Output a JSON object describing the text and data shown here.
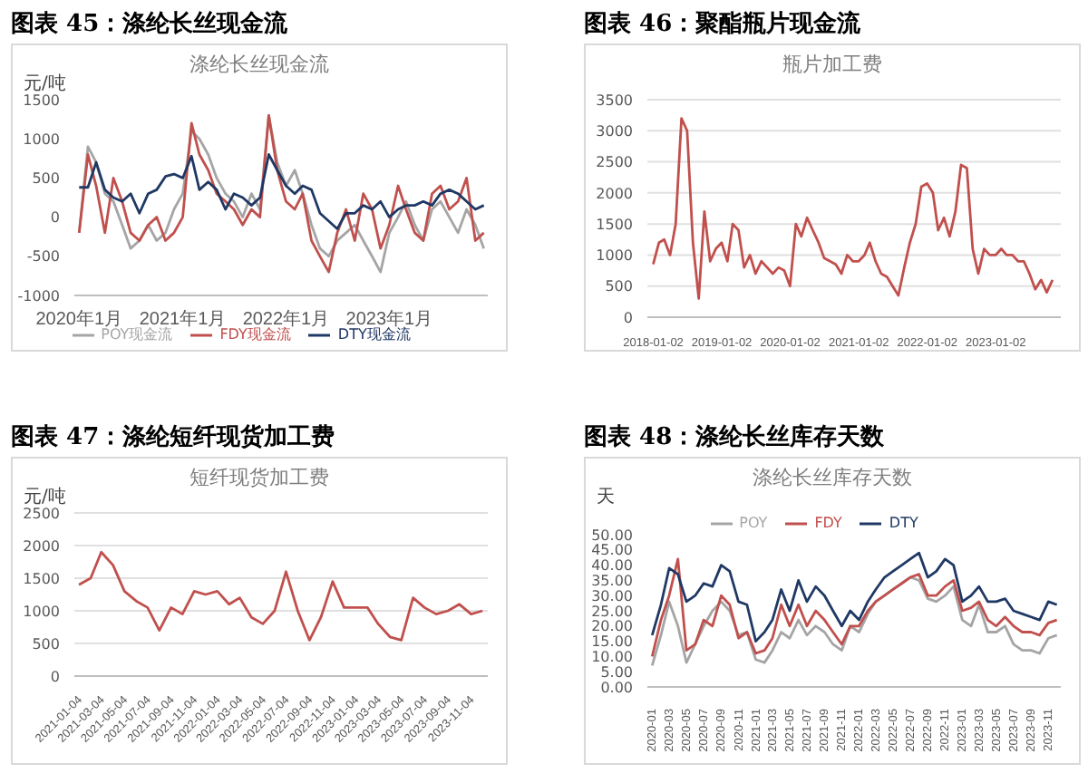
{
  "chart_data": [
    {
      "type": "line",
      "title": "图表 45：涤纶长丝现金流",
      "subtitle": "涤纶长丝现金流",
      "ylabel": "元/吨",
      "legend": "bottom",
      "grid": false,
      "x": [
        "2020-01",
        "2020-02",
        "2020-03",
        "2020-04",
        "2020-05",
        "2020-06",
        "2020-07",
        "2020-08",
        "2020-09",
        "2020-10",
        "2020-11",
        "2020-12",
        "2021-01",
        "2021-02",
        "2021-03",
        "2021-04",
        "2021-05",
        "2021-06",
        "2021-07",
        "2021-08",
        "2021-09",
        "2021-10",
        "2021-11",
        "2021-12",
        "2022-01",
        "2022-02",
        "2022-03",
        "2022-04",
        "2022-05",
        "2022-06",
        "2022-07",
        "2022-08",
        "2022-09",
        "2022-10",
        "2022-11",
        "2022-12",
        "2023-01",
        "2023-02",
        "2023-03",
        "2023-04",
        "2023-05",
        "2023-06",
        "2023-07",
        "2023-08",
        "2023-09",
        "2023-10",
        "2023-11",
        "2023-12"
      ],
      "xlim": [
        "2019-12-15",
        "2023-12-15"
      ],
      "xticks": [
        {
          "value": "2020-01",
          "label": "2020年1月"
        },
        {
          "value": "2021-01",
          "label": "2021年1月"
        },
        {
          "value": "2022-01",
          "label": "2022年1月"
        },
        {
          "value": "2023-01",
          "label": "2023年1月"
        }
      ],
      "ylim": [
        -1000,
        1500
      ],
      "yticks": [
        -1000,
        -500,
        0,
        500,
        1000,
        1500
      ],
      "series": [
        {
          "name": "POY现金流",
          "color": "#a5a5a5",
          "values": [
            -200,
            900,
            700,
            300,
            200,
            -100,
            -400,
            -300,
            -100,
            -300,
            -200,
            100,
            300,
            1100,
            1000,
            800,
            500,
            300,
            200,
            0,
            300,
            100,
            1300,
            700,
            400,
            600,
            300,
            -100,
            -400,
            -500,
            -300,
            -200,
            -100,
            -300,
            -500,
            -700,
            -200,
            0,
            200,
            -100,
            -300,
            100,
            200,
            0,
            -200,
            100,
            -100,
            -400
          ]
        },
        {
          "name": "FDY现金流",
          "color": "#c0504d",
          "values": [
            -200,
            800,
            400,
            -200,
            500,
            200,
            -200,
            -300,
            -100,
            0,
            -300,
            -200,
            0,
            1200,
            800,
            600,
            300,
            200,
            100,
            -100,
            100,
            0,
            1300,
            600,
            200,
            100,
            300,
            -300,
            -500,
            -700,
            -200,
            100,
            -300,
            300,
            100,
            -400,
            -100,
            400,
            100,
            -200,
            -300,
            300,
            400,
            100,
            200,
            500,
            -300,
            -200
          ]
        },
        {
          "name": "DTY现金流",
          "color": "#1f3864",
          "values": [
            380,
            380,
            700,
            350,
            250,
            200,
            300,
            50,
            300,
            350,
            520,
            550,
            500,
            780,
            350,
            450,
            350,
            100,
            300,
            250,
            150,
            250,
            800,
            600,
            400,
            300,
            400,
            350,
            50,
            -50,
            -150,
            50,
            50,
            150,
            100,
            200,
            0,
            100,
            150,
            150,
            200,
            150,
            300,
            350,
            300,
            200,
            100,
            150
          ]
        }
      ]
    },
    {
      "type": "line",
      "title": "图表 46：聚酯瓶片现金流",
      "subtitle": "瓶片加工费",
      "grid": "y",
      "x": [
        "2018-01",
        "2018-02",
        "2018-03",
        "2018-04",
        "2018-05",
        "2018-06",
        "2018-07",
        "2018-08",
        "2018-09",
        "2018-10",
        "2018-11",
        "2018-12",
        "2019-01",
        "2019-02",
        "2019-03",
        "2019-04",
        "2019-05",
        "2019-06",
        "2019-07",
        "2019-08",
        "2019-09",
        "2019-10",
        "2019-11",
        "2019-12",
        "2020-01",
        "2020-02",
        "2020-03",
        "2020-04",
        "2020-05",
        "2020-06",
        "2020-07",
        "2020-08",
        "2020-09",
        "2020-10",
        "2020-11",
        "2020-12",
        "2021-01",
        "2021-02",
        "2021-03",
        "2021-04",
        "2021-05",
        "2021-06",
        "2021-07",
        "2021-08",
        "2021-09",
        "2021-10",
        "2021-11",
        "2021-12",
        "2022-01",
        "2022-02",
        "2022-03",
        "2022-04",
        "2022-05",
        "2022-06",
        "2022-07",
        "2022-08",
        "2022-09",
        "2022-10",
        "2022-11",
        "2022-12",
        "2023-01",
        "2023-02",
        "2023-03",
        "2023-04",
        "2023-05",
        "2023-06",
        "2023-07",
        "2023-08",
        "2023-09",
        "2023-10",
        "2023-11"
      ],
      "xlim": [
        "2017-12-01",
        "2023-12-15"
      ],
      "xticks": [
        "2018-01-02",
        "2019-01-02",
        "2020-01-02",
        "2021-01-02",
        "2022-01-02",
        "2023-01-02"
      ],
      "ylim": [
        0,
        3500
      ],
      "yticks": [
        0,
        500,
        1000,
        1500,
        2000,
        2500,
        3000,
        3500
      ],
      "series": [
        {
          "color": "#c0504d",
          "values": [
            850,
            1200,
            1250,
            1000,
            1500,
            3200,
            3000,
            1200,
            300,
            1700,
            900,
            1100,
            1200,
            900,
            1500,
            1400,
            800,
            1000,
            700,
            900,
            800,
            700,
            800,
            750,
            500,
            1500,
            1300,
            1600,
            1400,
            1200,
            950,
            900,
            850,
            700,
            1000,
            900,
            900,
            1000,
            1200,
            900,
            700,
            650,
            500,
            350,
            800,
            1200,
            1500,
            2100,
            2150,
            2000,
            1400,
            1600,
            1300,
            1700,
            2450,
            2400,
            1100,
            700,
            1100,
            1000,
            1000,
            1100,
            1000,
            1000,
            900,
            900,
            700,
            450,
            600,
            400,
            600
          ]
        }
      ]
    },
    {
      "type": "line",
      "title": "图表 47：涤纶短纤现货加工费",
      "subtitle": "短纤现货加工费",
      "ylabel": "元/吨",
      "grid": "y",
      "x": [
        "2021-01",
        "2021-02",
        "2021-03",
        "2021-04",
        "2021-05",
        "2021-06",
        "2021-07",
        "2021-08",
        "2021-09",
        "2021-10",
        "2021-11",
        "2021-12",
        "2022-01",
        "2022-02",
        "2022-03",
        "2022-04",
        "2022-05",
        "2022-06",
        "2022-07",
        "2022-08",
        "2022-09",
        "2022-10",
        "2022-11",
        "2022-12",
        "2023-01",
        "2023-02",
        "2023-03",
        "2023-04",
        "2023-05",
        "2023-06",
        "2023-07",
        "2023-08",
        "2023-09",
        "2023-10",
        "2023-11",
        "2023-12"
      ],
      "xlim": [
        "2020-12-20",
        "2023-12-15"
      ],
      "xticks": [
        "2021-01-04",
        "2021-03-04",
        "2021-05-04",
        "2021-07-04",
        "2021-09-04",
        "2021-11-04",
        "2022-01-04",
        "2022-03-04",
        "2022-05-04",
        "2022-07-04",
        "2022-09-04",
        "2022-11-04",
        "2023-01-04",
        "2023-03-04",
        "2023-05-04",
        "2023-07-04",
        "2023-09-04",
        "2023-11-04"
      ],
      "ylim": [
        0,
        2500
      ],
      "yticks": [
        0,
        500,
        1000,
        1500,
        2000,
        2500
      ],
      "series": [
        {
          "color": "#c0504d",
          "values": [
            1400,
            1500,
            1900,
            1700,
            1300,
            1150,
            1050,
            700,
            1050,
            950,
            1300,
            1250,
            1300,
            1100,
            1200,
            900,
            800,
            1000,
            1600,
            1000,
            550,
            900,
            1450,
            1050,
            1050,
            1050,
            800,
            600,
            550,
            1200,
            1050,
            950,
            1000,
            1100,
            950,
            1000
          ]
        }
      ]
    },
    {
      "type": "line",
      "title": "图表 48：涤纶长丝库存天数",
      "subtitle": "涤纶长丝库存天数",
      "ylabel": "天",
      "legend": "top",
      "grid": false,
      "x": [
        "2020-01",
        "2020-02",
        "2020-03",
        "2020-04",
        "2020-05",
        "2020-06",
        "2020-07",
        "2020-08",
        "2020-09",
        "2020-10",
        "2020-11",
        "2020-12",
        "2021-01",
        "2021-02",
        "2021-03",
        "2021-04",
        "2021-05",
        "2021-06",
        "2021-07",
        "2021-08",
        "2021-09",
        "2021-10",
        "2021-11",
        "2021-12",
        "2022-01",
        "2022-02",
        "2022-03",
        "2022-04",
        "2022-05",
        "2022-06",
        "2022-07",
        "2022-08",
        "2022-09",
        "2022-10",
        "2022-11",
        "2022-12",
        "2023-01",
        "2023-02",
        "2023-03",
        "2023-04",
        "2023-05",
        "2023-06",
        "2023-07",
        "2023-08",
        "2023-09",
        "2023-10",
        "2023-11",
        "2023-12"
      ],
      "xlim": [
        "2019-12-15",
        "2023-12-15"
      ],
      "xticks": [
        "2020-01",
        "2020-03",
        "2020-05",
        "2020-07",
        "2020-09",
        "2020-11",
        "2021-01",
        "2021-03",
        "2021-05",
        "2021-07",
        "2021-09",
        "2021-11",
        "2022-01",
        "2022-03",
        "2022-05",
        "2022-07",
        "2022-09",
        "2022-11",
        "2023-01",
        "2023-03",
        "2023-05",
        "2023-07",
        "2023-09",
        "2023-11"
      ],
      "ylim": [
        0,
        50
      ],
      "yticks": [
        {
          "value": 0,
          "label": "0.00"
        },
        {
          "value": 5,
          "label": "5.00"
        },
        {
          "value": 10,
          "label": "10.00"
        },
        {
          "value": 15,
          "label": "15.00"
        },
        {
          "value": 20,
          "label": "20.00"
        },
        {
          "value": 25,
          "label": "25.00"
        },
        {
          "value": 30,
          "label": "30.00"
        },
        {
          "value": 35,
          "label": "35.00"
        },
        {
          "value": 40,
          "label": "40.00"
        },
        {
          "value": 45,
          "label": "45.00"
        },
        {
          "value": 50,
          "label": "50.00"
        }
      ],
      "series": [
        {
          "name": "POY",
          "color": "#a5a5a5",
          "values": [
            7,
            17,
            28,
            20,
            8,
            14,
            20,
            25,
            28,
            25,
            17,
            18,
            9,
            8,
            12,
            18,
            16,
            22,
            17,
            20,
            18,
            14,
            12,
            20,
            18,
            24,
            28,
            30,
            32,
            34,
            36,
            35,
            29,
            28,
            30,
            33,
            22,
            20,
            27,
            18,
            18,
            20,
            14,
            12,
            12,
            11,
            16,
            17
          ]
        },
        {
          "name": "FDY",
          "color": "#c0504d",
          "values": [
            10,
            22,
            30,
            42,
            12,
            14,
            22,
            20,
            30,
            27,
            16,
            18,
            11,
            12,
            16,
            27,
            20,
            27,
            20,
            25,
            22,
            18,
            14,
            20,
            20,
            25,
            28,
            30,
            32,
            34,
            36,
            37,
            30,
            30,
            33,
            35,
            25,
            26,
            28,
            22,
            20,
            23,
            20,
            18,
            18,
            17,
            21,
            22
          ]
        },
        {
          "name": "DTY",
          "color": "#1f3864",
          "values": [
            17,
            27,
            39,
            37,
            28,
            30,
            34,
            33,
            40,
            38,
            28,
            27,
            15,
            18,
            22,
            32,
            25,
            35,
            28,
            33,
            30,
            25,
            20,
            25,
            22,
            28,
            32,
            36,
            38,
            40,
            42,
            44,
            36,
            38,
            42,
            40,
            28,
            30,
            33,
            28,
            28,
            29,
            25,
            24,
            23,
            22,
            28,
            27
          ]
        }
      ]
    }
  ]
}
